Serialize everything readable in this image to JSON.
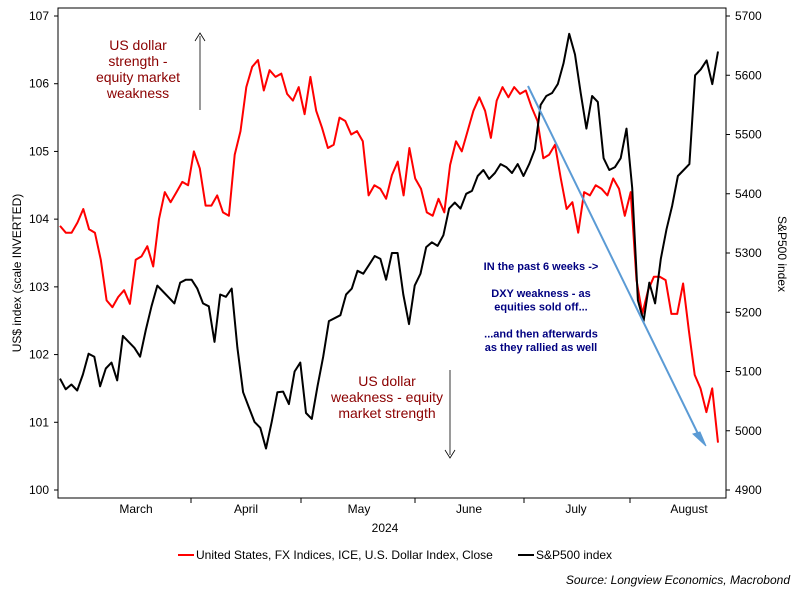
{
  "chart_data": {
    "type": "line",
    "x_axis": {
      "month_labels": [
        "March",
        "April",
        "May",
        "June",
        "July",
        "August"
      ],
      "year_label": "2024"
    },
    "left_axis": {
      "label": "US$ index (scale INVERTED)",
      "range": [
        100,
        107
      ],
      "inverted": true,
      "ticks": [
        "107",
        "106",
        "105",
        "104",
        "103",
        "102",
        "101",
        "100"
      ]
    },
    "right_axis": {
      "label": "S&P500 index",
      "range": [
        4900,
        5700
      ],
      "ticks": [
        "5700",
        "5600",
        "5500",
        "5400",
        "5300",
        "5200",
        "5100",
        "5000",
        "4900"
      ]
    },
    "series": [
      {
        "name": "United States, FX Indices, ICE, U.S. Dollar Index, Close",
        "axis": "left",
        "color": "#ff0000",
        "values": [
          103.9,
          103.8,
          103.8,
          103.95,
          104.15,
          103.85,
          103.8,
          103.4,
          102.8,
          102.7,
          102.85,
          102.95,
          102.75,
          103.4,
          103.45,
          103.6,
          103.3,
          104.0,
          104.4,
          104.25,
          104.4,
          104.55,
          104.5,
          105.0,
          104.75,
          104.2,
          104.2,
          104.35,
          104.1,
          104.05,
          104.95,
          105.3,
          105.95,
          106.25,
          106.35,
          105.9,
          106.2,
          106.1,
          106.15,
          105.85,
          105.75,
          105.95,
          105.55,
          106.1,
          105.6,
          105.35,
          105.05,
          105.1,
          105.5,
          105.45,
          105.25,
          105.3,
          105.15,
          104.35,
          104.5,
          104.45,
          104.3,
          104.65,
          104.85,
          104.35,
          105.05,
          104.6,
          104.45,
          104.1,
          104.05,
          104.3,
          104.1,
          104.8,
          105.15,
          105.0,
          105.3,
          105.6,
          105.8,
          105.6,
          105.2,
          105.75,
          105.95,
          105.8,
          105.95,
          105.85,
          105.9,
          105.65,
          105.45,
          104.9,
          104.95,
          105.1,
          104.6,
          104.15,
          104.25,
          103.8,
          104.4,
          104.35,
          104.5,
          104.45,
          104.35,
          104.6,
          104.45,
          104.05,
          104.4,
          103.1,
          102.6,
          102.95,
          103.15,
          103.15,
          103.1,
          102.6,
          102.6,
          103.05,
          102.35,
          101.7,
          101.5,
          101.15,
          101.5,
          100.7
        ],
        "legend_color": "#ff0000"
      },
      {
        "name": "S&P500 index",
        "axis": "right",
        "color": "#000000",
        "values": [
          5088,
          5070,
          5078,
          5068,
          5095,
          5130,
          5125,
          5075,
          5105,
          5115,
          5085,
          5160,
          5150,
          5140,
          5125,
          5170,
          5210,
          5245,
          5235,
          5225,
          5215,
          5250,
          5255,
          5255,
          5240,
          5215,
          5210,
          5150,
          5230,
          5226,
          5240,
          5140,
          5065,
          5040,
          5015,
          5005,
          4970,
          5015,
          5065,
          5066,
          5045,
          5100,
          5115,
          5030,
          5020,
          5075,
          5125,
          5185,
          5190,
          5195,
          5230,
          5240,
          5270,
          5265,
          5280,
          5295,
          5290,
          5255,
          5300,
          5300,
          5230,
          5180,
          5245,
          5265,
          5310,
          5318,
          5312,
          5330,
          5375,
          5385,
          5375,
          5400,
          5405,
          5430,
          5440,
          5425,
          5435,
          5450,
          5445,
          5435,
          5450,
          5430,
          5450,
          5475,
          5550,
          5565,
          5570,
          5585,
          5620,
          5670,
          5635,
          5570,
          5510,
          5565,
          5555,
          5460,
          5440,
          5445,
          5460,
          5510,
          5410,
          5220,
          5185,
          5250,
          5215,
          5290,
          5340,
          5380,
          5430,
          5440,
          5450,
          5600,
          5610,
          5625,
          5585,
          5640
        ],
        "legend_color": "#000000"
      }
    ],
    "annotations": {
      "top_left": [
        "US dollar",
        "strength -",
        "equity market",
        "weakness"
      ],
      "bottom_middle": [
        "US dollar",
        "weakness - equity",
        "market strength"
      ],
      "right_box": [
        "IN the past 6 weeks ->",
        "",
        "DXY weakness - as",
        "equities sold off...",
        "",
        "...and then afterwards",
        "as they rallied as well"
      ]
    },
    "trend_arrow_color": "#5b9bd5",
    "grid": false,
    "legend_position": "bottom",
    "source": "Source: Longview Economics, Macrobond"
  }
}
